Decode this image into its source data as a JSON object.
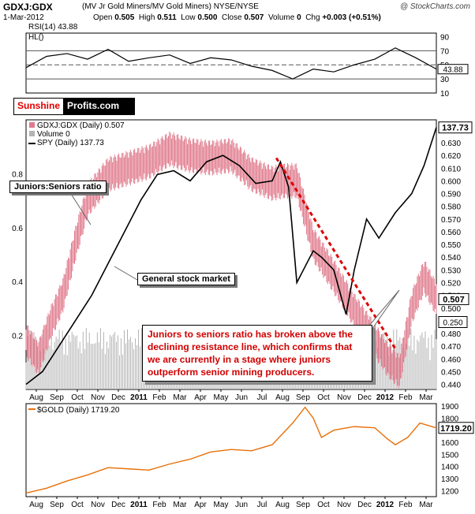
{
  "header": {
    "title": "GDXJ:GDX",
    "subtitle": "(MV Jr Gold Miners/MV Gold Miners) NYSE/NYSE",
    "brand": "@ StockCharts.com",
    "date": "1-Mar-2012",
    "open_label": "Open",
    "open": "0.505",
    "high_label": "High",
    "high": "0.511",
    "low_label": "Low",
    "low": "0.500",
    "close_label": "Close",
    "close": "0.507",
    "volume_label": "Volume",
    "volume": "0",
    "chg_label": "Chg",
    "chg": "+0.003 (+0.51%)"
  },
  "logo": {
    "part1": "Sunshine",
    "part2": "Profits.com"
  },
  "annotations": {
    "juniors": "Juniors:Seniors ratio",
    "stock_market": "General stock market",
    "note": "Juniors to seniors ratio has broken above the declining resistance line, which confirms that we are currently in a stage where juniors outperform senior mining producers."
  },
  "colors": {
    "price": "#e07a8c",
    "volume": "#b3b3b3",
    "spy": "#000000",
    "gold": "#e8700a",
    "trendline": "#dd0000",
    "rsi_fill": "#3a7a3a",
    "rsi_fill_low": "#8a3a3a"
  },
  "chart_data": [
    {
      "type": "line",
      "name": "rsi_panel",
      "legend": [
        "RSI(14) 43.88",
        "HL()"
      ],
      "y_ticks": [
        "90",
        "70",
        "50",
        "30",
        "10"
      ],
      "ylim": [
        10,
        95
      ],
      "guides": [
        70,
        50,
        30
      ],
      "last_value": "43.88",
      "x": [
        0,
        0.05,
        0.1,
        0.15,
        0.2,
        0.25,
        0.3,
        0.35,
        0.4,
        0.45,
        0.5,
        0.55,
        0.6,
        0.65,
        0.7,
        0.75,
        0.8,
        0.85,
        0.9,
        0.95,
        1
      ],
      "values": [
        46,
        62,
        66,
        58,
        72,
        55,
        60,
        64,
        52,
        60,
        57,
        48,
        42,
        30,
        44,
        40,
        50,
        58,
        74,
        60,
        44
      ]
    },
    {
      "type": "line",
      "name": "main_panel",
      "legend": [
        "GDXJ:GDX (Daily) 0.507",
        "Volume 0",
        "SPY (Daily) 137.73"
      ],
      "right_ticks": [
        "0.640",
        "0.630",
        "0.620",
        "0.610",
        "0.600",
        "0.590",
        "0.580",
        "0.570",
        "0.560",
        "0.550",
        "0.540",
        "0.530",
        "0.520",
        "0.510",
        "0.500",
        "0.490",
        "0.480",
        "0.470",
        "0.460",
        "0.450",
        "0.440"
      ],
      "ylim": [
        0.436,
        0.648
      ],
      "left_ticks": [
        "0.8",
        "0.6",
        "0.4",
        "0.2"
      ],
      "volume_ylim": [
        0,
        1.0
      ],
      "price_label": "0.507",
      "spy_label": "137.73",
      "volume_label": "0.250",
      "x_ticks": [
        "Aug",
        "Sep",
        "Oct",
        "Nov",
        "Dec",
        "2011",
        "Feb",
        "Mar",
        "Apr",
        "May",
        "Jun",
        "Jul",
        "Aug",
        "Sep",
        "Oct",
        "Nov",
        "Dec",
        "2012",
        "Feb",
        "Mar"
      ],
      "series": [
        {
          "name": "GDXJ:GDX",
          "x": [
            0,
            0.03,
            0.06,
            0.09,
            0.12,
            0.15,
            0.2,
            0.25,
            0.3,
            0.35,
            0.4,
            0.45,
            0.5,
            0.55,
            0.6,
            0.63,
            0.66,
            0.7,
            0.75,
            0.8,
            0.85,
            0.88,
            0.91,
            0.94,
            0.97,
            1
          ],
          "values": [
            0.475,
            0.46,
            0.488,
            0.51,
            0.55,
            0.585,
            0.605,
            0.61,
            0.615,
            0.625,
            0.62,
            0.618,
            0.62,
            0.605,
            0.598,
            0.6,
            0.6,
            0.55,
            0.525,
            0.498,
            0.475,
            0.46,
            0.45,
            0.5,
            0.525,
            0.507
          ]
        },
        {
          "name": "SPY",
          "x": [
            0,
            0.04,
            0.08,
            0.12,
            0.16,
            0.2,
            0.24,
            0.28,
            0.32,
            0.36,
            0.4,
            0.44,
            0.48,
            0.52,
            0.56,
            0.6,
            0.62,
            0.64,
            0.66,
            0.7,
            0.72,
            0.75,
            0.78,
            0.8,
            0.83,
            0.86,
            0.9,
            0.94,
            0.97,
            1
          ],
          "values": [
            0.44,
            0.45,
            0.47,
            0.49,
            0.51,
            0.535,
            0.56,
            0.585,
            0.605,
            0.608,
            0.6,
            0.615,
            0.62,
            0.612,
            0.598,
            0.6,
            0.615,
            0.595,
            0.52,
            0.545,
            0.54,
            0.53,
            0.495,
            0.53,
            0.57,
            0.555,
            0.575,
            0.59,
            0.612,
            0.642
          ]
        }
      ],
      "trendline": {
        "from": {
          "x": 0.61,
          "y": 0.618
        },
        "to": {
          "x": 0.9,
          "y": 0.468
        }
      }
    },
    {
      "type": "line",
      "name": "gold_panel",
      "legend": [
        "$GOLD (Daily) 1719.20"
      ],
      "y_ticks": [
        "1900",
        "1800",
        "1700",
        "1600",
        "1500",
        "1400",
        "1300",
        "1200"
      ],
      "ylim": [
        1150,
        1920
      ],
      "last_value": "1719.20",
      "x_ticks": [
        "Aug",
        "Sep",
        "Oct",
        "Nov",
        "Dec",
        "2011",
        "Feb",
        "Mar",
        "Apr",
        "May",
        "Jun",
        "Jul",
        "Aug",
        "Sep",
        "Oct",
        "Nov",
        "Dec",
        "2012",
        "Feb",
        "Mar"
      ],
      "x": [
        0,
        0.05,
        0.1,
        0.15,
        0.2,
        0.25,
        0.3,
        0.35,
        0.4,
        0.45,
        0.5,
        0.55,
        0.6,
        0.65,
        0.68,
        0.7,
        0.72,
        0.75,
        0.8,
        0.85,
        0.88,
        0.9,
        0.93,
        0.96,
        1
      ],
      "values": [
        1180,
        1220,
        1280,
        1330,
        1390,
        1380,
        1370,
        1420,
        1460,
        1520,
        1540,
        1530,
        1580,
        1760,
        1890,
        1800,
        1640,
        1700,
        1730,
        1720,
        1630,
        1580,
        1640,
        1760,
        1719
      ]
    }
  ]
}
